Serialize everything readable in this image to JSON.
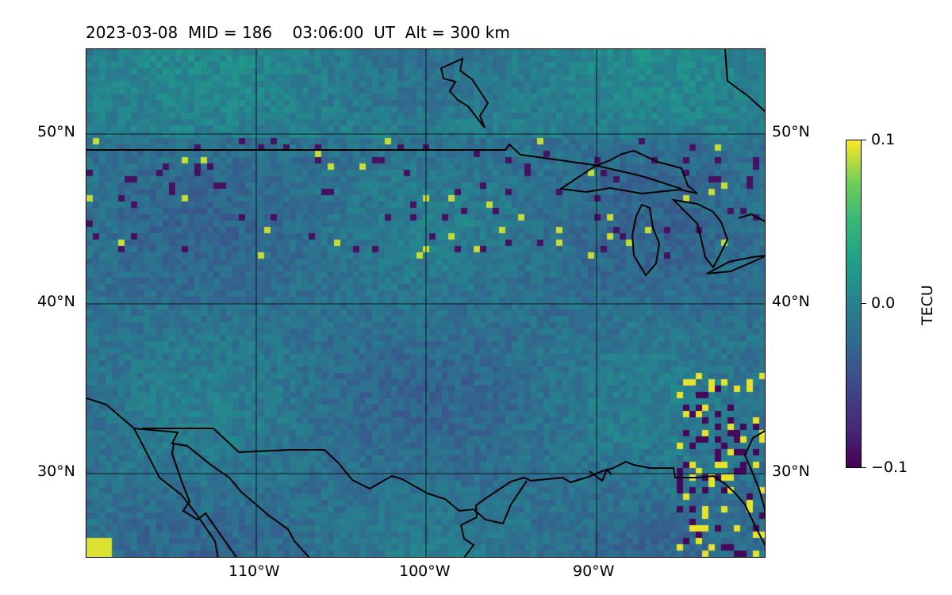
{
  "title": "2023-03-08  MID = 186    03:06:00  UT  Alt = 300 km",
  "map": {
    "lon_range": [
      -120,
      -80
    ],
    "lat_range": [
      25,
      55
    ],
    "colormap": "viridis",
    "gridlines": true,
    "coastlines": true
  },
  "lat_ticks": [
    "50°N",
    "40°N",
    "30°N"
  ],
  "lon_ticks": [
    "110°W",
    "100°W",
    "90°W"
  ],
  "colorbar": {
    "label": "TECU",
    "ticks": [
      "0.1",
      "0.0",
      "−0.1"
    ],
    "range": [
      -0.1,
      0.1
    ]
  }
}
